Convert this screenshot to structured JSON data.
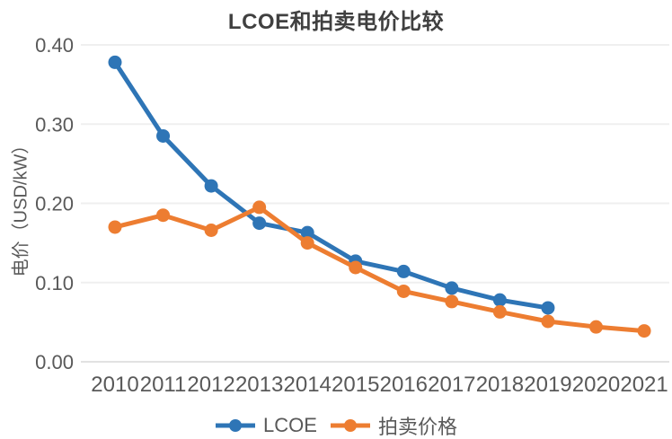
{
  "chart_data": {
    "type": "line",
    "title": "LCOE和拍卖电价比较",
    "ylabel": "电价（USD/kW）",
    "xlabel": "",
    "categories": [
      "2010",
      "2011",
      "2012",
      "2013",
      "2014",
      "2015",
      "2016",
      "2017",
      "2018",
      "2019",
      "2020",
      "2021"
    ],
    "series": [
      {
        "name": "LCOE",
        "color": "#2E75B6",
        "values": [
          0.378,
          0.285,
          0.222,
          0.175,
          0.163,
          0.127,
          0.114,
          0.093,
          0.078,
          0.068,
          null,
          null
        ]
      },
      {
        "name": "拍卖价格",
        "color": "#ED7D31",
        "values": [
          0.17,
          0.185,
          0.166,
          0.195,
          0.15,
          0.119,
          0.089,
          0.076,
          0.063,
          0.051,
          0.044,
          0.039
        ]
      }
    ],
    "ylim": [
      0.0,
      0.4
    ],
    "ytick_step": 0.1,
    "ytick_labels": [
      "0.00",
      "0.10",
      "0.20",
      "0.30",
      "0.40"
    ],
    "grid": true,
    "legend_position": "bottom",
    "colors": {
      "grid_line": "#efefef",
      "axis_line": "#e2e2e2",
      "tick_text": "#595959",
      "title_text": "#404040"
    }
  }
}
